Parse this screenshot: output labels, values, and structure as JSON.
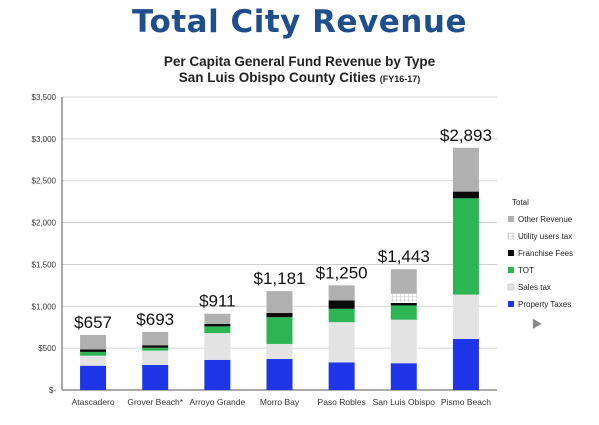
{
  "page": {
    "title": "Total City Revenue"
  },
  "chart_data": {
    "type": "bar",
    "stacked": true,
    "title": "Per Capita General Fund Revenue by Type",
    "subtitle": "San Luis Obispo County Cities",
    "subtitle_note": "(FY16-17)",
    "xlabel": "",
    "ylabel": "",
    "ylim": [
      0,
      3500
    ],
    "yticks": [
      0,
      500,
      1000,
      1500,
      2000,
      2500,
      3000,
      3500
    ],
    "ytick_labels": [
      "$-",
      "$500",
      "$1,000",
      "$1,500",
      "$2,000",
      "$2,500",
      "$3,000",
      "$3,500"
    ],
    "grid": true,
    "categories": [
      "Atascadero",
      "Grover Beach*",
      "Arroyo Grande",
      "Morro Bay",
      "Paso Robles",
      "San Luis Obispo",
      "Pismo Beach"
    ],
    "series": [
      {
        "name": "Property Taxes",
        "color": "#1f35e8",
        "values": [
          290,
          300,
          360,
          370,
          330,
          320,
          610
        ]
      },
      {
        "name": "Sales tax",
        "color": "#e3e3e3",
        "values": [
          120,
          170,
          320,
          180,
          480,
          520,
          530
        ]
      },
      {
        "name": "TOT",
        "color": "#2db553",
        "values": [
          45,
          35,
          80,
          320,
          160,
          170,
          1150
        ]
      },
      {
        "name": "Franchise Fees",
        "color": "#0a0a0a",
        "values": [
          30,
          30,
          30,
          50,
          100,
          30,
          80
        ]
      },
      {
        "name": "Utility users tax",
        "color": "#ffffff",
        "pattern": "grid",
        "values": [
          0,
          0,
          0,
          0,
          0,
          110,
          0
        ]
      },
      {
        "name": "Other Revenue",
        "color": "#b0b0b0",
        "values": [
          172,
          158,
          121,
          261,
          180,
          293,
          523
        ]
      }
    ],
    "totals": [
      657,
      693,
      911,
      1181,
      1250,
      1443,
      2893
    ],
    "total_labels": [
      "$657",
      "$693",
      "$911",
      "$1,181",
      "$1,250",
      "$1,443",
      "$2,893"
    ],
    "legend": {
      "title": "Total",
      "placement": "right",
      "items": [
        "Other Revenue",
        "Utility users tax",
        "Franchise Fees",
        "TOT",
        "Sales tax",
        "Property Taxes"
      ]
    }
  }
}
